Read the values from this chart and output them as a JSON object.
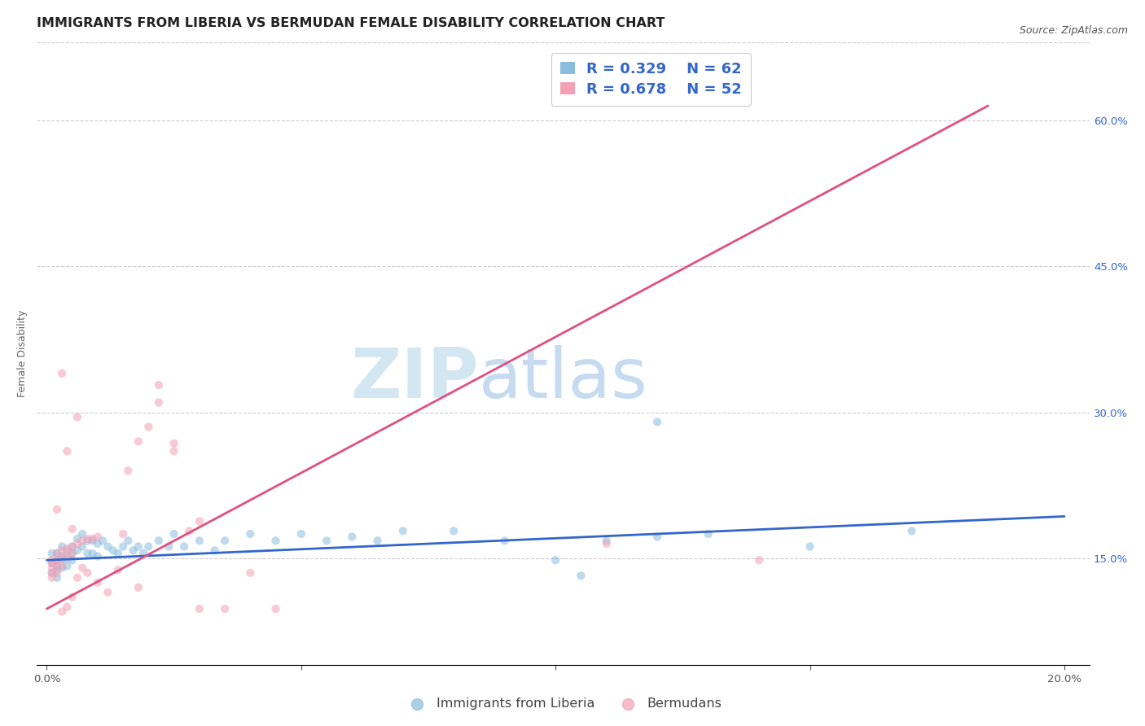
{
  "title": "IMMIGRANTS FROM LIBERIA VS BERMUDAN FEMALE DISABILITY CORRELATION CHART",
  "source": "Source: ZipAtlas.com",
  "ylabel": "Female Disability",
  "watermark_zip": "ZIP",
  "watermark_atlas": "atlas",
  "x_ticks": [
    0.0,
    0.05,
    0.1,
    0.15,
    0.2
  ],
  "x_tick_labels": [
    "0.0%",
    "",
    "",
    "",
    "20.0%"
  ],
  "y_ticks_right": [
    0.15,
    0.3,
    0.45,
    0.6
  ],
  "y_tick_labels_right": [
    "15.0%",
    "30.0%",
    "45.0%",
    "60.0%"
  ],
  "xlim": [
    -0.002,
    0.205
  ],
  "ylim": [
    0.04,
    0.68
  ],
  "blue_color": "#8abcdd",
  "pink_color": "#f4a0b5",
  "blue_line_color": "#3366cc",
  "pink_line_color": "#e05080",
  "legend_R_blue": "0.329",
  "legend_N_blue": "62",
  "legend_R_pink": "0.678",
  "legend_N_pink": "52",
  "legend_label_blue": "Immigrants from Liberia",
  "legend_label_pink": "Bermudans",
  "blue_scatter_x": [
    0.001,
    0.001,
    0.001,
    0.002,
    0.002,
    0.002,
    0.002,
    0.002,
    0.003,
    0.003,
    0.003,
    0.003,
    0.004,
    0.004,
    0.004,
    0.005,
    0.005,
    0.005,
    0.006,
    0.006,
    0.007,
    0.007,
    0.008,
    0.008,
    0.009,
    0.009,
    0.01,
    0.01,
    0.011,
    0.012,
    0.013,
    0.014,
    0.015,
    0.016,
    0.017,
    0.018,
    0.019,
    0.02,
    0.022,
    0.024,
    0.025,
    0.027,
    0.03,
    0.033,
    0.035,
    0.04,
    0.045,
    0.05,
    0.055,
    0.06,
    0.065,
    0.07,
    0.08,
    0.09,
    0.1,
    0.11,
    0.12,
    0.13,
    0.15,
    0.17,
    0.12,
    0.105
  ],
  "blue_scatter_y": [
    0.155,
    0.145,
    0.135,
    0.155,
    0.148,
    0.142,
    0.138,
    0.13,
    0.162,
    0.152,
    0.148,
    0.14,
    0.158,
    0.15,
    0.142,
    0.162,
    0.155,
    0.148,
    0.17,
    0.158,
    0.175,
    0.162,
    0.168,
    0.155,
    0.168,
    0.155,
    0.165,
    0.152,
    0.168,
    0.162,
    0.158,
    0.155,
    0.162,
    0.168,
    0.158,
    0.162,
    0.155,
    0.162,
    0.168,
    0.162,
    0.175,
    0.162,
    0.168,
    0.158,
    0.168,
    0.175,
    0.168,
    0.175,
    0.168,
    0.172,
    0.168,
    0.178,
    0.178,
    0.168,
    0.148,
    0.168,
    0.172,
    0.175,
    0.162,
    0.178,
    0.29,
    0.132
  ],
  "pink_scatter_x": [
    0.001,
    0.001,
    0.001,
    0.001,
    0.001,
    0.002,
    0.002,
    0.002,
    0.002,
    0.003,
    0.003,
    0.003,
    0.003,
    0.004,
    0.004,
    0.004,
    0.005,
    0.005,
    0.005,
    0.006,
    0.006,
    0.007,
    0.007,
    0.008,
    0.008,
    0.009,
    0.01,
    0.01,
    0.012,
    0.014,
    0.015,
    0.016,
    0.018,
    0.02,
    0.022,
    0.025,
    0.028,
    0.03,
    0.035,
    0.04,
    0.045,
    0.018,
    0.022,
    0.025,
    0.03,
    0.11,
    0.14,
    0.002,
    0.003,
    0.004,
    0.005,
    0.006
  ],
  "pink_scatter_y": [
    0.148,
    0.145,
    0.14,
    0.135,
    0.13,
    0.155,
    0.148,
    0.142,
    0.135,
    0.158,
    0.15,
    0.142,
    0.095,
    0.16,
    0.152,
    0.1,
    0.162,
    0.155,
    0.11,
    0.165,
    0.13,
    0.168,
    0.14,
    0.17,
    0.135,
    0.17,
    0.172,
    0.125,
    0.115,
    0.138,
    0.175,
    0.24,
    0.27,
    0.285,
    0.31,
    0.26,
    0.178,
    0.098,
    0.098,
    0.135,
    0.098,
    0.12,
    0.328,
    0.268,
    0.188,
    0.165,
    0.148,
    0.2,
    0.34,
    0.26,
    0.18,
    0.295
  ],
  "blue_trendline_x": [
    0.0,
    0.2
  ],
  "blue_trendline_y": [
    0.148,
    0.193
  ],
  "pink_trendline_x": [
    0.0,
    0.185
  ],
  "pink_trendline_y": [
    0.098,
    0.615
  ],
  "grid_color": "#cccccc",
  "background_color": "#ffffff",
  "title_fontsize": 11.5,
  "axis_label_fontsize": 9,
  "tick_fontsize": 9.5,
  "scatter_size": 55,
  "scatter_alpha": 0.55,
  "line_width": 2.0
}
